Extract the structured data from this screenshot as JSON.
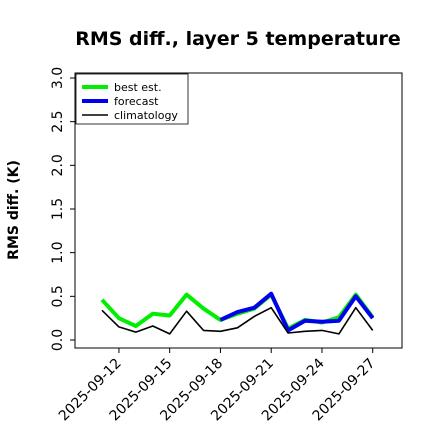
{
  "chart_data": {
    "type": "line",
    "title": "RMS diff., layer 5 temperature",
    "xlabel": "",
    "ylabel": "RMS diff. (K)",
    "ylim": [
      0.0,
      3.0
    ],
    "yticks": [
      "0.0",
      "0.5",
      "1.0",
      "1.5",
      "2.0",
      "2.5",
      "3.0"
    ],
    "ytick_values": [
      0.0,
      0.5,
      1.0,
      1.5,
      2.0,
      2.5,
      3.0
    ],
    "xticks": [
      "2025-09-12",
      "2025-09-15",
      "2025-09-18",
      "2025-09-21",
      "2025-09-24",
      "2025-09-27"
    ],
    "highlight_xtick": "2025-09-18",
    "highlight_color": "#228b22",
    "legend_position": "top-left",
    "grid": false,
    "x": [
      "2025-09-11",
      "2025-09-12",
      "2025-09-13",
      "2025-09-14",
      "2025-09-15",
      "2025-09-16",
      "2025-09-17",
      "2025-09-18",
      "2025-09-19",
      "2025-09-20",
      "2025-09-21",
      "2025-09-22",
      "2025-09-23",
      "2025-09-24",
      "2025-09-25",
      "2025-09-26",
      "2025-09-27"
    ],
    "series": [
      {
        "name": "best est.",
        "color": "#00ee00",
        "values": [
          0.46,
          0.25,
          0.16,
          0.3,
          0.28,
          0.52,
          0.36,
          0.23,
          0.3,
          0.36,
          0.52,
          0.13,
          0.23,
          0.2,
          0.26,
          0.52,
          0.26
        ]
      },
      {
        "name": "forecast",
        "color": "#0000ee",
        "values": [
          null,
          null,
          null,
          null,
          null,
          null,
          null,
          0.23,
          0.32,
          0.37,
          0.53,
          0.11,
          0.22,
          0.21,
          0.22,
          0.5,
          0.25
        ]
      },
      {
        "name": "climatology",
        "color": "#000000",
        "values": [
          0.34,
          0.15,
          0.09,
          0.16,
          0.07,
          0.33,
          0.11,
          0.1,
          0.14,
          0.27,
          0.37,
          0.08,
          0.1,
          0.11,
          0.07,
          0.37,
          0.11
        ]
      }
    ]
  }
}
